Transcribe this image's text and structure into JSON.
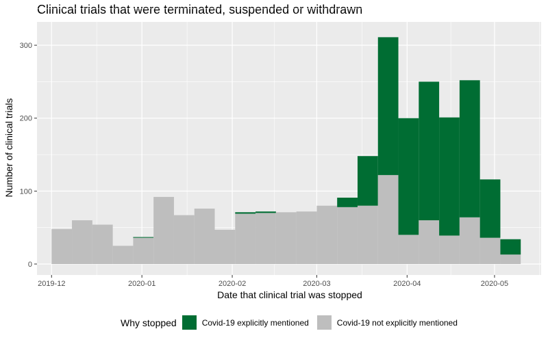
{
  "chart_data": {
    "type": "bar",
    "title": "Clinical trials that were terminated, suspended or withdrawn",
    "xlabel": "Date that clinical trial was stopped",
    "ylabel": "Number of clinical trials",
    "stacked": true,
    "bin_width_days": 7,
    "x_range": [
      "2019-11-26",
      "2020-05-17"
    ],
    "ylim": [
      -15,
      332
    ],
    "x_ticks": [
      {
        "date": "2019-12-01",
        "label": "2019-12"
      },
      {
        "date": "2020-01-01",
        "label": "2020-01"
      },
      {
        "date": "2020-02-01",
        "label": "2020-02"
      },
      {
        "date": "2020-03-01",
        "label": "2020-03"
      },
      {
        "date": "2020-04-01",
        "label": "2020-04"
      },
      {
        "date": "2020-05-01",
        "label": "2020-05"
      }
    ],
    "y_ticks": [
      0,
      100,
      200,
      300
    ],
    "bins": [
      "2019-12-01",
      "2019-12-08",
      "2019-12-15",
      "2019-12-22",
      "2019-12-29",
      "2020-01-05",
      "2020-01-12",
      "2020-01-19",
      "2020-01-26",
      "2020-02-02",
      "2020-02-09",
      "2020-02-16",
      "2020-02-23",
      "2020-03-01",
      "2020-03-08",
      "2020-03-15",
      "2020-03-22",
      "2020-03-29",
      "2020-04-05",
      "2020-04-12",
      "2020-04-19",
      "2020-04-26",
      "2020-05-03"
    ],
    "series": [
      {
        "name": "Covid-19 not explicitly mentioned",
        "color": "#bebebe",
        "values": [
          48,
          60,
          54,
          25,
          36,
          92,
          67,
          76,
          47,
          69,
          70,
          71,
          72,
          80,
          78,
          80,
          122,
          40,
          60,
          39,
          64,
          36,
          13
        ]
      },
      {
        "name": "Covid-19 explicitly mentioned",
        "color": "#006d33",
        "values": [
          0,
          0,
          0,
          0,
          1,
          0,
          0,
          0,
          0,
          2,
          2,
          0,
          0,
          0,
          13,
          68,
          189,
          160,
          190,
          162,
          188,
          80,
          21
        ]
      }
    ],
    "legend": {
      "title": "Why stopped",
      "position": "bottom",
      "entries": [
        {
          "label": "Covid-19 explicitly mentioned",
          "color": "#006d33"
        },
        {
          "label": "Covid-19 not explicitly mentioned",
          "color": "#bebebe"
        }
      ]
    },
    "grid": true
  }
}
